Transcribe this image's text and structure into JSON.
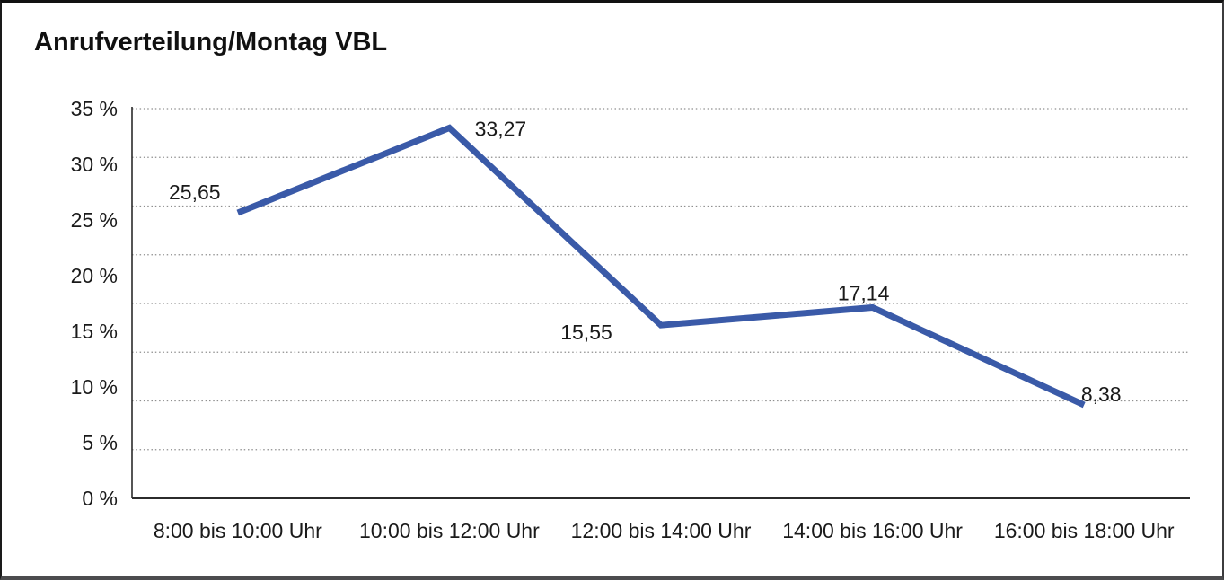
{
  "chart_data": {
    "type": "line",
    "title": "Anrufverteilung/Montag VBL",
    "categories": [
      "8:00 bis 10:00 Uhr",
      "10:00 bis 12:00 Uhr",
      "12:00 bis 14:00 Uhr",
      "14:00 bis 16:00 Uhr",
      "16:00 bis 18:00 Uhr"
    ],
    "values": [
      25.65,
      33.27,
      15.55,
      17.14,
      8.38
    ],
    "data_labels": [
      "25,65",
      "33,27",
      "15,55",
      "17,14",
      "8,38"
    ],
    "y_tick_labels": [
      "35 %",
      "30 %",
      "25 %",
      "20 %",
      "15 %",
      "10 %",
      "5 %",
      "0 %"
    ],
    "ylim": [
      0,
      35
    ],
    "xlabel": "",
    "ylabel": "",
    "grid": "dotted-horizontal",
    "legend": "none",
    "line_color": "#3a5aa8",
    "axis_color": "#2b2b2b",
    "grid_color": "#8f8f8f",
    "text_color": "#1a1a1a"
  }
}
